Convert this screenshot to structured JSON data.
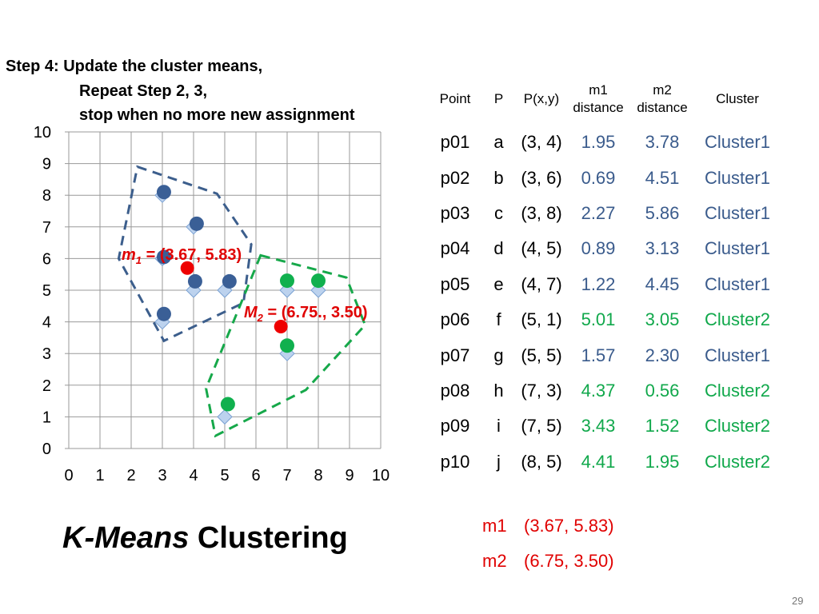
{
  "heading": {
    "line1": "Step 4: Update the cluster means,",
    "line2": "Repeat Step 2, 3,",
    "line3": "stop when no more new assignment"
  },
  "chart_data": {
    "type": "scatter",
    "xlim": [
      0,
      10
    ],
    "ylim": [
      0,
      10
    ],
    "xticks": [
      "0",
      "1",
      "2",
      "3",
      "4",
      "5",
      "6",
      "7",
      "8",
      "9",
      "10"
    ],
    "yticks": [
      "0",
      "1",
      "2",
      "3",
      "4",
      "5",
      "6",
      "7",
      "8",
      "9",
      "10"
    ],
    "grid": true,
    "points": [
      {
        "x": 3,
        "y": 4
      },
      {
        "x": 3,
        "y": 6
      },
      {
        "x": 3,
        "y": 8
      },
      {
        "x": 4,
        "y": 5
      },
      {
        "x": 4,
        "y": 7
      },
      {
        "x": 5,
        "y": 1
      },
      {
        "x": 5,
        "y": 5
      },
      {
        "x": 7,
        "y": 3
      },
      {
        "x": 7,
        "y": 5
      },
      {
        "x": 8,
        "y": 5
      }
    ],
    "cluster1_points": [
      {
        "x": 3.05,
        "y": 4.25
      },
      {
        "x": 3.05,
        "y": 6.05
      },
      {
        "x": 3.05,
        "y": 8.1
      },
      {
        "x": 4.05,
        "y": 5.28
      },
      {
        "x": 4.1,
        "y": 7.1
      },
      {
        "x": 5.15,
        "y": 5.28
      }
    ],
    "cluster2_points": [
      {
        "x": 5.1,
        "y": 1.4
      },
      {
        "x": 7.0,
        "y": 3.25
      },
      {
        "x": 7.0,
        "y": 5.3
      },
      {
        "x": 8.0,
        "y": 5.3
      }
    ],
    "means": [
      {
        "x": 3.8,
        "y": 5.7,
        "label_symbol": "m",
        "label_sub": "1",
        "label_rest": " = (3.67, 5.83)",
        "style": "italic"
      },
      {
        "x": 6.8,
        "y": 3.85,
        "label_symbol": "M",
        "label_sub": "2",
        "label_rest": " = (6.75., 3.50)",
        "style": "italic"
      }
    ],
    "hull1": [
      [
        2.2,
        8.9
      ],
      [
        4.75,
        8.05
      ],
      [
        5.85,
        6.45
      ],
      [
        5.6,
        4.6
      ],
      [
        3.05,
        3.4
      ],
      [
        1.6,
        6.0
      ]
    ],
    "hull2": [
      [
        6.15,
        6.1
      ],
      [
        8.9,
        5.4
      ],
      [
        9.5,
        3.9
      ],
      [
        7.6,
        1.85
      ],
      [
        4.7,
        0.4
      ],
      [
        4.4,
        1.9
      ]
    ],
    "colors": {
      "diamond_fill": "#bcd2ee",
      "diamond_stroke": "#7aa1d2",
      "cluster1": "#3a5f96",
      "cluster2": "#10b04e",
      "mean": "#ee0000",
      "hull1": "#3c5e8c",
      "hull2": "#16a84a",
      "grid": "#999999",
      "mean_label": "#e00000"
    }
  },
  "table": {
    "headers": {
      "point": "Point",
      "p": "P",
      "pxy": "P(x,y)",
      "m1": "m1 distance",
      "m2": "m2 distance",
      "cluster": "Cluster"
    },
    "rows": [
      {
        "point": "p01",
        "p": "a",
        "pxy": "(3, 4)",
        "m1": "1.95",
        "m2": "3.78",
        "cluster": "Cluster1",
        "color": "blue"
      },
      {
        "point": "p02",
        "p": "b",
        "pxy": "(3, 6)",
        "m1": "0.69",
        "m2": "4.51",
        "cluster": "Cluster1",
        "color": "blue"
      },
      {
        "point": "p03",
        "p": "c",
        "pxy": "(3, 8)",
        "m1": "2.27",
        "m2": "5.86",
        "cluster": "Cluster1",
        "color": "blue"
      },
      {
        "point": "p04",
        "p": "d",
        "pxy": "(4, 5)",
        "m1": "0.89",
        "m2": "3.13",
        "cluster": "Cluster1",
        "color": "blue"
      },
      {
        "point": "p05",
        "p": "e",
        "pxy": "(4, 7)",
        "m1": "1.22",
        "m2": "4.45",
        "cluster": "Cluster1",
        "color": "blue"
      },
      {
        "point": "p06",
        "p": "f",
        "pxy": "(5, 1)",
        "m1": "5.01",
        "m2": "3.05",
        "cluster": "Cluster2",
        "color": "green"
      },
      {
        "point": "p07",
        "p": "g",
        "pxy": "(5, 5)",
        "m1": "1.57",
        "m2": "2.30",
        "cluster": "Cluster1",
        "color": "blue"
      },
      {
        "point": "p08",
        "p": "h",
        "pxy": "(7, 3)",
        "m1": "4.37",
        "m2": "0.56",
        "cluster": "Cluster2",
        "color": "green"
      },
      {
        "point": "p09",
        "p": "i",
        "pxy": "(7, 5)",
        "m1": "3.43",
        "m2": "1.52",
        "cluster": "Cluster2",
        "color": "green"
      },
      {
        "point": "p10",
        "p": "j",
        "pxy": "(8, 5)",
        "m1": "4.41",
        "m2": "1.95",
        "cluster": "Cluster2",
        "color": "green"
      }
    ]
  },
  "means_list": [
    {
      "label": "m1",
      "value": "(3.67, 5.83)"
    },
    {
      "label": "m2",
      "value": "(6.75, 3.50)"
    }
  ],
  "title": {
    "italic": "K-Means",
    "rest": " Clustering"
  },
  "page_number": "29"
}
